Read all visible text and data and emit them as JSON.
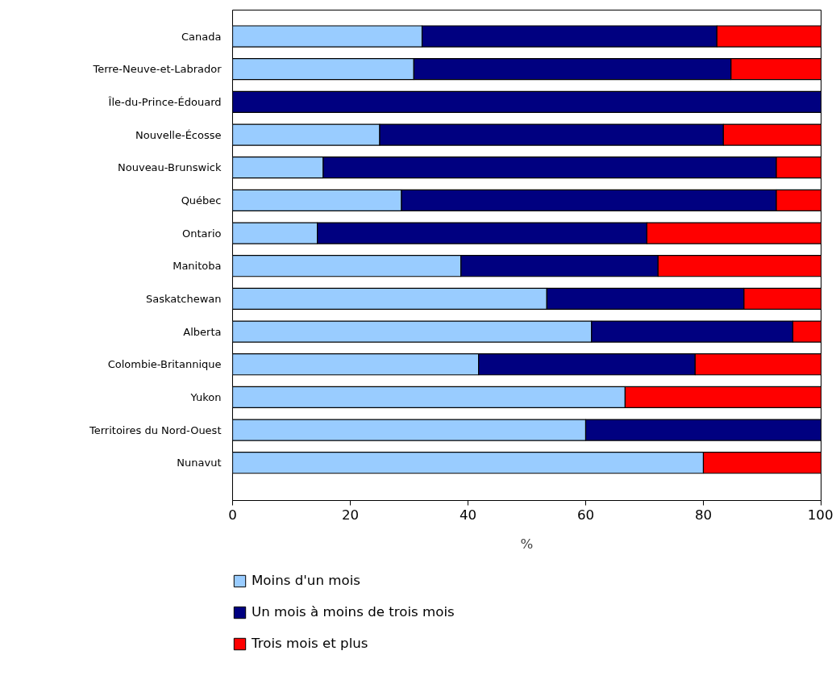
{
  "chart_data": {
    "type": "bar",
    "orientation": "horizontal",
    "stacked": true,
    "xlabel": "%",
    "categories": [
      "Canada",
      "Terre-Neuve-et-Labrador",
      "Île-du-Prince-Édouard",
      "Nouvelle-Écosse",
      "Nouveau-Brunswick",
      "Québec",
      "Ontario",
      "Manitoba",
      "Saskatchewan",
      "Alberta",
      "Colombie-Britannique",
      "Yukon",
      "Territoires du Nord-Ouest",
      "Nunavut"
    ],
    "series": [
      {
        "name": "Moins d'un mois",
        "color": "#99ccff",
        "values": [
          32.2,
          30.8,
          0,
          25.0,
          15.4,
          28.7,
          14.4,
          38.8,
          53.4,
          61.0,
          41.8,
          66.7,
          60.0,
          80.0
        ]
      },
      {
        "name": "Un mois à moins de trois mois",
        "color": "#000080",
        "values": [
          50.1,
          53.9,
          100,
          58.4,
          77.0,
          63.7,
          56.0,
          33.5,
          33.5,
          34.2,
          36.8,
          0,
          40.0,
          0
        ]
      },
      {
        "name": "Trois mois et plus",
        "color": "#ff0000",
        "values": [
          17.7,
          15.3,
          0,
          16.6,
          7.6,
          7.6,
          29.6,
          27.7,
          13.1,
          4.8,
          21.4,
          33.3,
          0,
          20.0
        ]
      }
    ],
    "xlim": [
      0,
      100
    ],
    "xticks": [
      0,
      20,
      40,
      60,
      80,
      100
    ],
    "grid": false,
    "legend": "bottom"
  }
}
